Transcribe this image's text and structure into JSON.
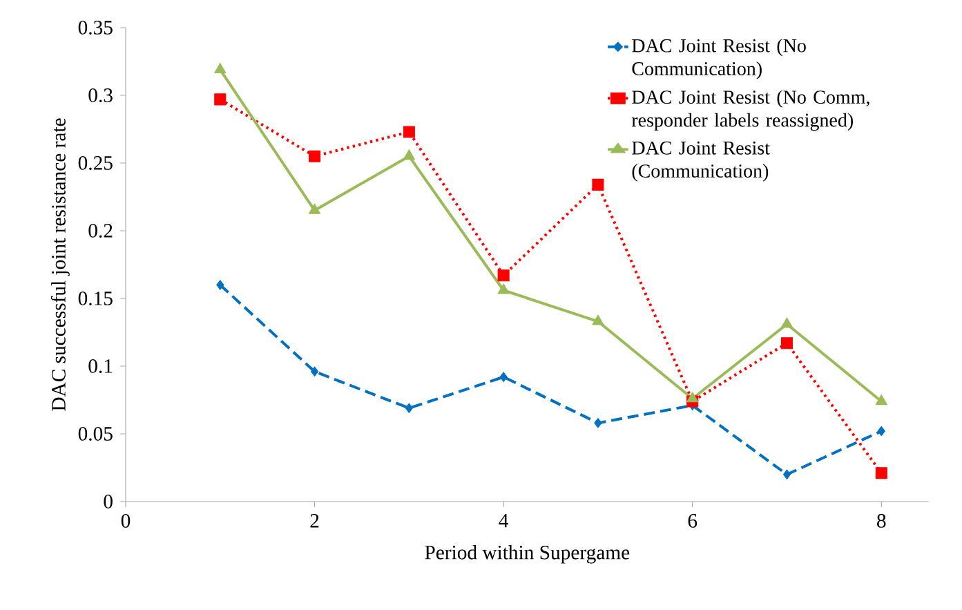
{
  "chart_data": {
    "type": "line",
    "xlabel": "Period within Supergame",
    "ylabel": "DAC successful joint resistance rate",
    "x": [
      1,
      2,
      3,
      4,
      5,
      6,
      7,
      8
    ],
    "series": [
      {
        "name": "DAC Joint Resist (No Communication)",
        "color": "#0070c0",
        "marker": "diamond",
        "line_style": "dashed",
        "values": [
          0.16,
          0.096,
          0.069,
          0.092,
          0.058,
          0.071,
          0.02,
          0.052
        ]
      },
      {
        "name": "DAC Joint Resist (No Comm, responder labels reassigned)",
        "color": "#ff0000",
        "marker": "square",
        "line_style": "dotted",
        "values": [
          0.297,
          0.255,
          0.273,
          0.167,
          0.234,
          0.074,
          0.117,
          0.021
        ]
      },
      {
        "name": "DAC Joint Resist (Communication)",
        "color": "#9bbb59",
        "marker": "triangle",
        "line_style": "solid",
        "values": [
          0.319,
          0.215,
          0.255,
          0.156,
          0.133,
          0.076,
          0.131,
          0.074
        ]
      }
    ],
    "xlim": [
      0,
      8.5
    ],
    "xticks": [
      0,
      2,
      4,
      6,
      8
    ],
    "ylim": [
      0,
      0.35
    ],
    "yticks": [
      0,
      0.05,
      0.1,
      0.15,
      0.2,
      0.25,
      0.3,
      0.35
    ],
    "legend": "top right"
  }
}
